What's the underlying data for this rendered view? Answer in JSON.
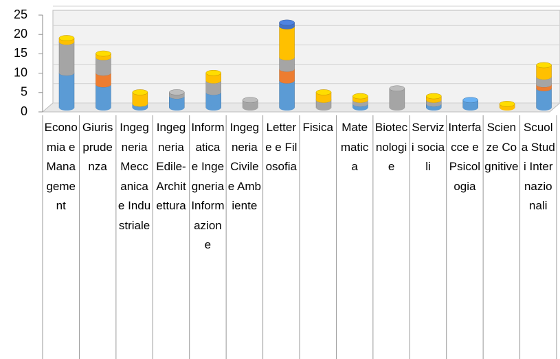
{
  "chart_data": {
    "type": "bar3d_stacked",
    "categories": [
      "Economia e Management",
      "Giurisprudenza",
      "Ingegneria Meccanica e Industriale",
      "Ingegneria Edile-Architettura",
      "Informatica e Ingegneria Informazione",
      "Ingegneria Civile e Ambiente",
      "Lettere e Filosofia",
      "Fisica",
      "Matematica",
      "Biotecnologie",
      "Servizi sociali",
      "Interfacce e Psicologia",
      "Scienze Cognitive",
      "Scuola Studi Internazionali"
    ],
    "series": [
      {
        "color": "#5b9bd5",
        "values": [
          9,
          6,
          1,
          3,
          4,
          0,
          7,
          0,
          1,
          0,
          1,
          2,
          0,
          5
        ]
      },
      {
        "color": "#ed7d31",
        "values": [
          0,
          3,
          0,
          0,
          0,
          0,
          3,
          0,
          0,
          0,
          0,
          0,
          0,
          1
        ]
      },
      {
        "color": "#a5a5a5",
        "values": [
          8,
          4,
          0,
          1,
          3,
          2,
          3,
          2,
          1,
          5,
          1,
          0,
          0,
          2
        ]
      },
      {
        "color": "#ffc000",
        "values": [
          1,
          1,
          3,
          0,
          2,
          0,
          8,
          2,
          1,
          0,
          1,
          0,
          1,
          3
        ]
      },
      {
        "color": "#4472c4",
        "values": [
          0,
          0,
          0,
          0,
          0,
          0,
          1,
          0,
          0,
          0,
          0,
          0,
          0,
          0
        ]
      }
    ],
    "ylim": [
      0,
      25
    ],
    "yticks": [
      0,
      5,
      10,
      15,
      20,
      25
    ],
    "grid": true
  }
}
